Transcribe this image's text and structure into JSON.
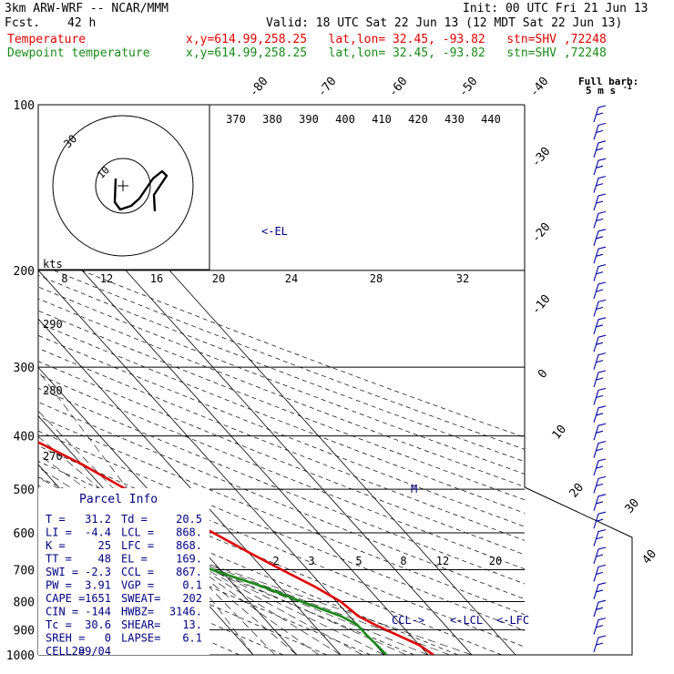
{
  "header": {
    "model": "3km ARW-WRF -- NCAR/MMM",
    "init": "Init: 00 UTC Fri 21 Jun 13",
    "fcst_label": "Fcst.",
    "fcst_hours": "42 h",
    "valid": "Valid: 18 UTC Sat 22 Jun 13 (12 MDT Sat 22 Jun 13)",
    "temp_label": "Temperature",
    "temp_info": "x,y=614.99,258.25   lat,lon= 32.45, -93.82   stn=SHV ,72248",
    "dew_label": "Dewpoint temperature",
    "dew_info": "x,y=614.99,258.25   lat,lon= 32.45, -93.82   stn=SHV ,72248"
  },
  "hodograph": {
    "ring_label": "30",
    "inner_label": "10",
    "kts_label": "kts"
  },
  "barbs": {
    "title": "Full barb:",
    "unit": "5 m s",
    "exp": "-1"
  },
  "annotations": {
    "el": "<-EL",
    "ccl": "CCL->",
    "lcl": "<-LCL",
    "lfc": "<-LFC",
    "storm_mark": "M"
  },
  "parcel": {
    "title": "Parcel Info",
    "rows": [
      [
        "T   =",
        "31.2",
        "Td  =",
        "20.5"
      ],
      [
        "LI  =",
        "-4.4",
        "LCL =",
        "868."
      ],
      [
        "K   =",
        "25",
        "LFC =",
        "868."
      ],
      [
        "TT  =",
        "48",
        "EL  =",
        "169."
      ],
      [
        "SWI =",
        "-2.3",
        "CCL =",
        "867."
      ],
      [
        "PW  =",
        "3.91",
        "VGP =",
        "0.1"
      ],
      [
        "CAPE =",
        "1651",
        "SWEAT=",
        "202"
      ],
      [
        "CIN  =",
        "-144",
        "HWBZ=",
        "3146."
      ],
      [
        "Tc  =",
        "30.6",
        "SHEAR=",
        "13."
      ],
      [
        "SREH =",
        "0",
        "LAPSE=",
        "6.1"
      ],
      [
        "CELL =",
        "289/04",
        "",
        ""
      ]
    ]
  },
  "chart_data": {
    "type": "line",
    "title": "",
    "xlabel": "",
    "ylabel": "",
    "pressure_levels": [
      100,
      200,
      300,
      400,
      500,
      600,
      700,
      800,
      900,
      1000
    ],
    "isotherm_labels": [
      -80,
      -70,
      -60,
      -50,
      -40,
      -30,
      -20,
      -10,
      0,
      10,
      20,
      30,
      40
    ],
    "theta_e_labels": [
      370,
      380,
      390,
      400,
      410,
      420,
      430,
      440
    ],
    "theta_labels": [
      290,
      280,
      270
    ],
    "mixing_ratio_upper": [
      8,
      12,
      16,
      20,
      24,
      28,
      32
    ],
    "mixing_ratio_lower": [
      2,
      3,
      5,
      8,
      12,
      20
    ],
    "series": [
      {
        "name": "Temperature",
        "color": "#e00000",
        "points": [
          [
            100,
            -73
          ],
          [
            120,
            -68
          ],
          [
            140,
            -64.5
          ],
          [
            160,
            -64
          ],
          [
            180,
            -62.5
          ],
          [
            200,
            -58
          ],
          [
            230,
            -50
          ],
          [
            260,
            -43
          ],
          [
            300,
            -35
          ],
          [
            350,
            -25
          ],
          [
            400,
            -17
          ],
          [
            450,
            -10
          ],
          [
            500,
            -5
          ],
          [
            550,
            1
          ],
          [
            600,
            6
          ],
          [
            650,
            10
          ],
          [
            700,
            14
          ],
          [
            750,
            18
          ],
          [
            800,
            21
          ],
          [
            850,
            22
          ],
          [
            880,
            24
          ],
          [
            920,
            27
          ],
          [
            960,
            30
          ],
          [
            1000,
            31.2
          ]
        ]
      },
      {
        "name": "Dewpoint temperature",
        "color": "#1a8a1a",
        "points": [
          [
            100,
            -95
          ],
          [
            110,
            -97
          ],
          [
            130,
            -93
          ],
          [
            150,
            -90
          ],
          [
            170,
            -86
          ],
          [
            200,
            -80
          ],
          [
            215,
            -78
          ],
          [
            235,
            -78
          ],
          [
            255,
            -76
          ],
          [
            280,
            -70
          ],
          [
            300,
            -74
          ],
          [
            330,
            -82
          ],
          [
            360,
            -62
          ],
          [
            400,
            -48
          ],
          [
            450,
            -50
          ],
          [
            500,
            -30
          ],
          [
            550,
            -13
          ],
          [
            600,
            -15
          ],
          [
            650,
            -8
          ],
          [
            700,
            -2
          ],
          [
            750,
            6
          ],
          [
            800,
            12
          ],
          [
            850,
            18
          ],
          [
            880,
            20
          ],
          [
            920,
            20
          ],
          [
            960,
            20.3
          ],
          [
            1000,
            20.5
          ]
        ]
      }
    ],
    "wind_barbs_side": "right"
  },
  "colors": {
    "temperature": "#e00000",
    "dewpoint": "#1a8a1a",
    "annotation": "#000080",
    "barb": "#0000a0"
  }
}
